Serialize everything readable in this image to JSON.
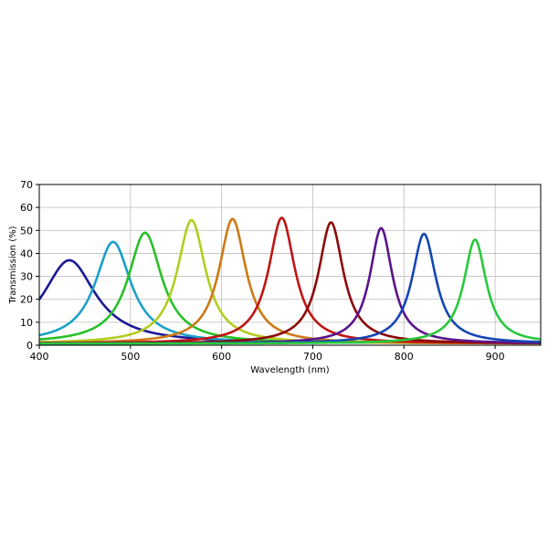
{
  "chart_data": {
    "type": "line",
    "title": "",
    "xlabel": "Wavelength (nm)",
    "ylabel": "Transmission (%)",
    "xlim": [
      400,
      950
    ],
    "ylim": [
      0,
      70
    ],
    "x_ticks": [
      400,
      500,
      600,
      700,
      800,
      900
    ],
    "y_ticks": [
      0,
      10,
      20,
      30,
      40,
      50,
      60,
      70
    ],
    "grid": true,
    "legend": "none",
    "series": [
      {
        "color": "#1a1a96",
        "peak_x": 433,
        "peak_y": 37,
        "fwhm": 70,
        "baseline": 0.8
      },
      {
        "color": "#1aa0c8",
        "peak_x": 481,
        "peak_y": 45,
        "fwhm": 48,
        "baseline": 0.8
      },
      {
        "color": "#28c028",
        "peak_x": 516,
        "peak_y": 49,
        "fwhm": 45,
        "baseline": 0.8
      },
      {
        "color": "#b4cc1e",
        "peak_x": 567,
        "peak_y": 54.5,
        "fwhm": 38,
        "baseline": 0.7
      },
      {
        "color": "#cc7a14",
        "peak_x": 612,
        "peak_y": 55,
        "fwhm": 36,
        "baseline": 0.7
      },
      {
        "color": "#c01414",
        "peak_x": 666,
        "peak_y": 55.5,
        "fwhm": 35,
        "baseline": 0.7
      },
      {
        "color": "#8c0a0a",
        "peak_x": 720,
        "peak_y": 53.5,
        "fwhm": 33,
        "baseline": 0.7
      },
      {
        "color": "#5a148c",
        "peak_x": 775,
        "peak_y": 51,
        "fwhm": 30,
        "baseline": 0.7
      },
      {
        "color": "#1446b4",
        "peak_x": 822,
        "peak_y": 48.5,
        "fwhm": 32,
        "baseline": 0.7
      },
      {
        "color": "#28c83c",
        "peak_x": 878,
        "peak_y": 46,
        "fwhm": 30,
        "baseline": 0.7
      }
    ]
  }
}
